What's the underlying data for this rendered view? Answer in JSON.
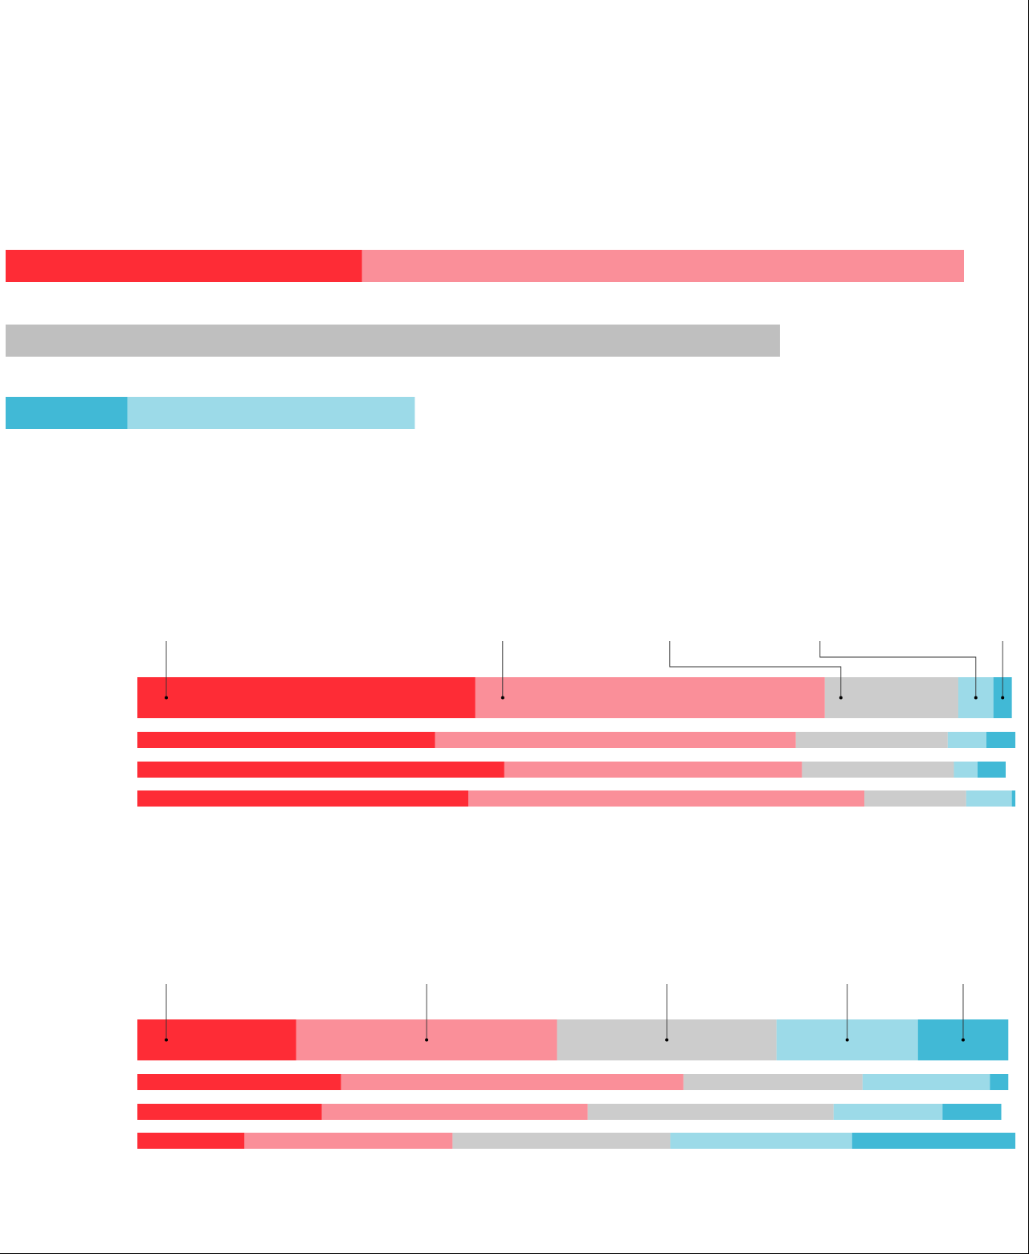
{
  "colors": {
    "strong_red": "#fe2c36",
    "light_red": "#fa8f99",
    "gray_dark": "#bfbfbf",
    "gray": "#cccccc",
    "light_blue": "#9cdae8",
    "strong_blue": "#41b9d6"
  },
  "chart_data": [
    {
      "type": "bar",
      "orientation": "horizontal",
      "stacked": true,
      "title": "",
      "xlabel": "",
      "ylabel": "",
      "categories": [
        "",
        "",
        ""
      ],
      "series": [
        {
          "values": [
            37.2,
            0,
            0
          ],
          "color": "strong_red"
        },
        {
          "values": [
            62.8,
            0,
            0
          ],
          "color": "light_red"
        },
        {
          "values": [
            0,
            80.8,
            0
          ],
          "color": "gray_dark"
        },
        {
          "values": [
            0,
            0,
            12.7
          ],
          "color": "strong_blue"
        },
        {
          "values": [
            0,
            0,
            30.0
          ],
          "color": "light_blue"
        }
      ],
      "xlim": [
        0,
        100
      ],
      "grid": false,
      "legend": "none"
    },
    {
      "type": "bar",
      "orientation": "horizontal",
      "stacked": true,
      "title": "",
      "xlabel": "",
      "ylabel": "",
      "categories": [
        "",
        "",
        "",
        ""
      ],
      "series": [
        {
          "values": [
            38.5,
            33.9,
            41.8,
            37.7
          ],
          "color": "strong_red"
        },
        {
          "values": [
            39.8,
            41.1,
            33.9,
            45.1
          ],
          "color": "light_red"
        },
        {
          "values": [
            15.2,
            17.3,
            17.3,
            11.6
          ],
          "color": "gray"
        },
        {
          "values": [
            4.0,
            4.4,
            2.7,
            5.2
          ],
          "color": "light_blue"
        },
        {
          "values": [
            2.1,
            3.3,
            3.2,
            0.4
          ],
          "color": "strong_blue"
        }
      ],
      "xlim": [
        0,
        100
      ],
      "grid": false,
      "legend": "none",
      "callouts": true
    },
    {
      "type": "bar",
      "orientation": "horizontal",
      "stacked": true,
      "title": "",
      "xlabel": "",
      "ylabel": "",
      "categories": [
        "",
        "",
        "",
        ""
      ],
      "series": [
        {
          "values": [
            18.1,
            23.2,
            21.0,
            12.2
          ],
          "color": "strong_red"
        },
        {
          "values": [
            29.7,
            39.0,
            30.3,
            23.7
          ],
          "color": "light_red"
        },
        {
          "values": [
            25.0,
            20.4,
            28.0,
            24.8
          ],
          "color": "gray"
        },
        {
          "values": [
            16.1,
            14.5,
            12.4,
            20.7
          ],
          "color": "light_blue"
        },
        {
          "values": [
            10.3,
            2.1,
            6.7,
            18.6
          ],
          "color": "strong_blue"
        }
      ],
      "xlim": [
        0,
        100
      ],
      "grid": false,
      "legend": "none",
      "callouts": true
    }
  ]
}
